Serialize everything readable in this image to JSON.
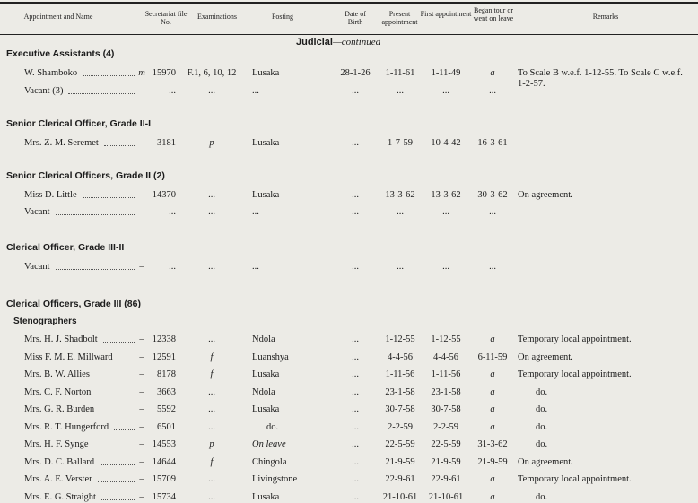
{
  "header": {
    "columns": [
      "Appointment and Name",
      "Secretariat file No.",
      "Examinations",
      "Posting",
      "Date of Birth",
      "Present appointment",
      "First appointment",
      "Began tour or went on leave",
      "Remarks"
    ]
  },
  "section": {
    "title": "Judicial",
    "suffix": "—continued"
  },
  "groups": [
    {
      "title": "Executive Assistants (4)",
      "rows": [
        {
          "name": "W. Shamboko",
          "marker": "m",
          "file": "15970",
          "exam": "F.1, 6, 10, 12",
          "posting": "Lusaka",
          "dob": "28-1-26",
          "present": "1-11-61",
          "first": "1-11-49",
          "tour": "a",
          "remarks": "To Scale B w.e.f. 1-12-55. To Scale C w.e.f. 1-2-57."
        },
        {
          "name": "Vacant (3)",
          "file": "...",
          "exam": "...",
          "posting": "...",
          "dob": "...",
          "present": "...",
          "first": "...",
          "tour": "..."
        }
      ]
    },
    {
      "title": "Senior Clerical Officer, Grade II-I",
      "rows": [
        {
          "name": "Mrs. Z. M. Seremet",
          "marker": "–",
          "file": "3181",
          "exam": "p",
          "posting": "Lusaka",
          "dob": "...",
          "present": "1-7-59",
          "first": "10-4-42",
          "tour": "16-3-61"
        }
      ]
    },
    {
      "title": "Senior Clerical Officers, Grade II (2)",
      "rows": [
        {
          "name": "Miss D. Little",
          "marker": "–",
          "file": "14370",
          "exam": "...",
          "posting": "Lusaka",
          "dob": "...",
          "present": "13-3-62",
          "first": "13-3-62",
          "tour": "30-3-62",
          "remarks": "On agreement."
        },
        {
          "name": "Vacant",
          "marker": "–",
          "file": "...",
          "exam": "...",
          "posting": "...",
          "dob": "...",
          "present": "...",
          "first": "...",
          "tour": "..."
        }
      ]
    },
    {
      "title": "Clerical Officer, Grade III-II",
      "rows": [
        {
          "name": "Vacant",
          "marker": "–",
          "file": "...",
          "exam": "...",
          "posting": "...",
          "dob": "...",
          "present": "...",
          "first": "...",
          "tour": "..."
        }
      ]
    },
    {
      "title": "Clerical Officers, Grade III (86)",
      "subtitle": "Stenographers",
      "rows": [
        {
          "name": "Mrs. H. J. Shadbolt",
          "marker": "–",
          "file": "12338",
          "exam": "...",
          "posting": "Ndola",
          "dob": "...",
          "present": "1-12-55",
          "first": "1-12-55",
          "tour": "a",
          "remarks": "Temporary local appointment."
        },
        {
          "name": "Miss F. M. E. Millward",
          "marker": "–",
          "file": "12591",
          "exam": "f",
          "posting": "Luanshya",
          "dob": "...",
          "present": "4-4-56",
          "first": "4-4-56",
          "tour": "6-11-59",
          "remarks": "On agreement."
        },
        {
          "name": "Mrs. B. W. Allies",
          "marker": "–",
          "file": "8178",
          "exam": "f",
          "posting": "Lusaka",
          "dob": "...",
          "present": "1-11-56",
          "first": "1-11-56",
          "tour": "a",
          "remarks": "Temporary local appointment."
        },
        {
          "name": "Mrs. C. F. Norton",
          "marker": "–",
          "file": "3663",
          "exam": "...",
          "posting": "Ndola",
          "dob": "...",
          "present": "23-1-58",
          "first": "23-1-58",
          "tour": "a",
          "remarks": "do."
        },
        {
          "name": "Mrs. G. R. Burden",
          "marker": "–",
          "file": "5592",
          "exam": "...",
          "posting": "Lusaka",
          "dob": "...",
          "present": "30-7-58",
          "first": "30-7-58",
          "tour": "a",
          "remarks": "do."
        },
        {
          "name": "Mrs. R. T. Hungerford",
          "marker": "–",
          "file": "6501",
          "exam": "...",
          "posting": "do.",
          "dob": "...",
          "present": "2-2-59",
          "first": "2-2-59",
          "tour": "a",
          "remarks": "do."
        },
        {
          "name": "Mrs. H. F. Synge",
          "marker": "–",
          "file": "14553",
          "exam": "p",
          "posting": "On leave",
          "dob": "...",
          "present": "22-5-59",
          "first": "22-5-59",
          "tour": "31-3-62",
          "remarks": "do."
        },
        {
          "name": "Mrs. D. C. Ballard",
          "marker": "–",
          "file": "14644",
          "exam": "f",
          "posting": "Chingola",
          "dob": "...",
          "present": "21-9-59",
          "first": "21-9-59",
          "tour": "21-9-59",
          "remarks": "On agreement."
        },
        {
          "name": "Mrs. A. E. Verster",
          "marker": "–",
          "file": "15709",
          "exam": "...",
          "posting": "Livingstone",
          "dob": "...",
          "present": "22-9-61",
          "first": "22-9-61",
          "tour": "a",
          "remarks": "Temporary local appointment."
        },
        {
          "name": "Mrs. E. G. Straight",
          "marker": "–",
          "file": "15734",
          "exam": "...",
          "posting": "Lusaka",
          "dob": "...",
          "present": "21-10-61",
          "first": "21-10-61",
          "tour": "a",
          "remarks": "do."
        }
      ]
    }
  ]
}
